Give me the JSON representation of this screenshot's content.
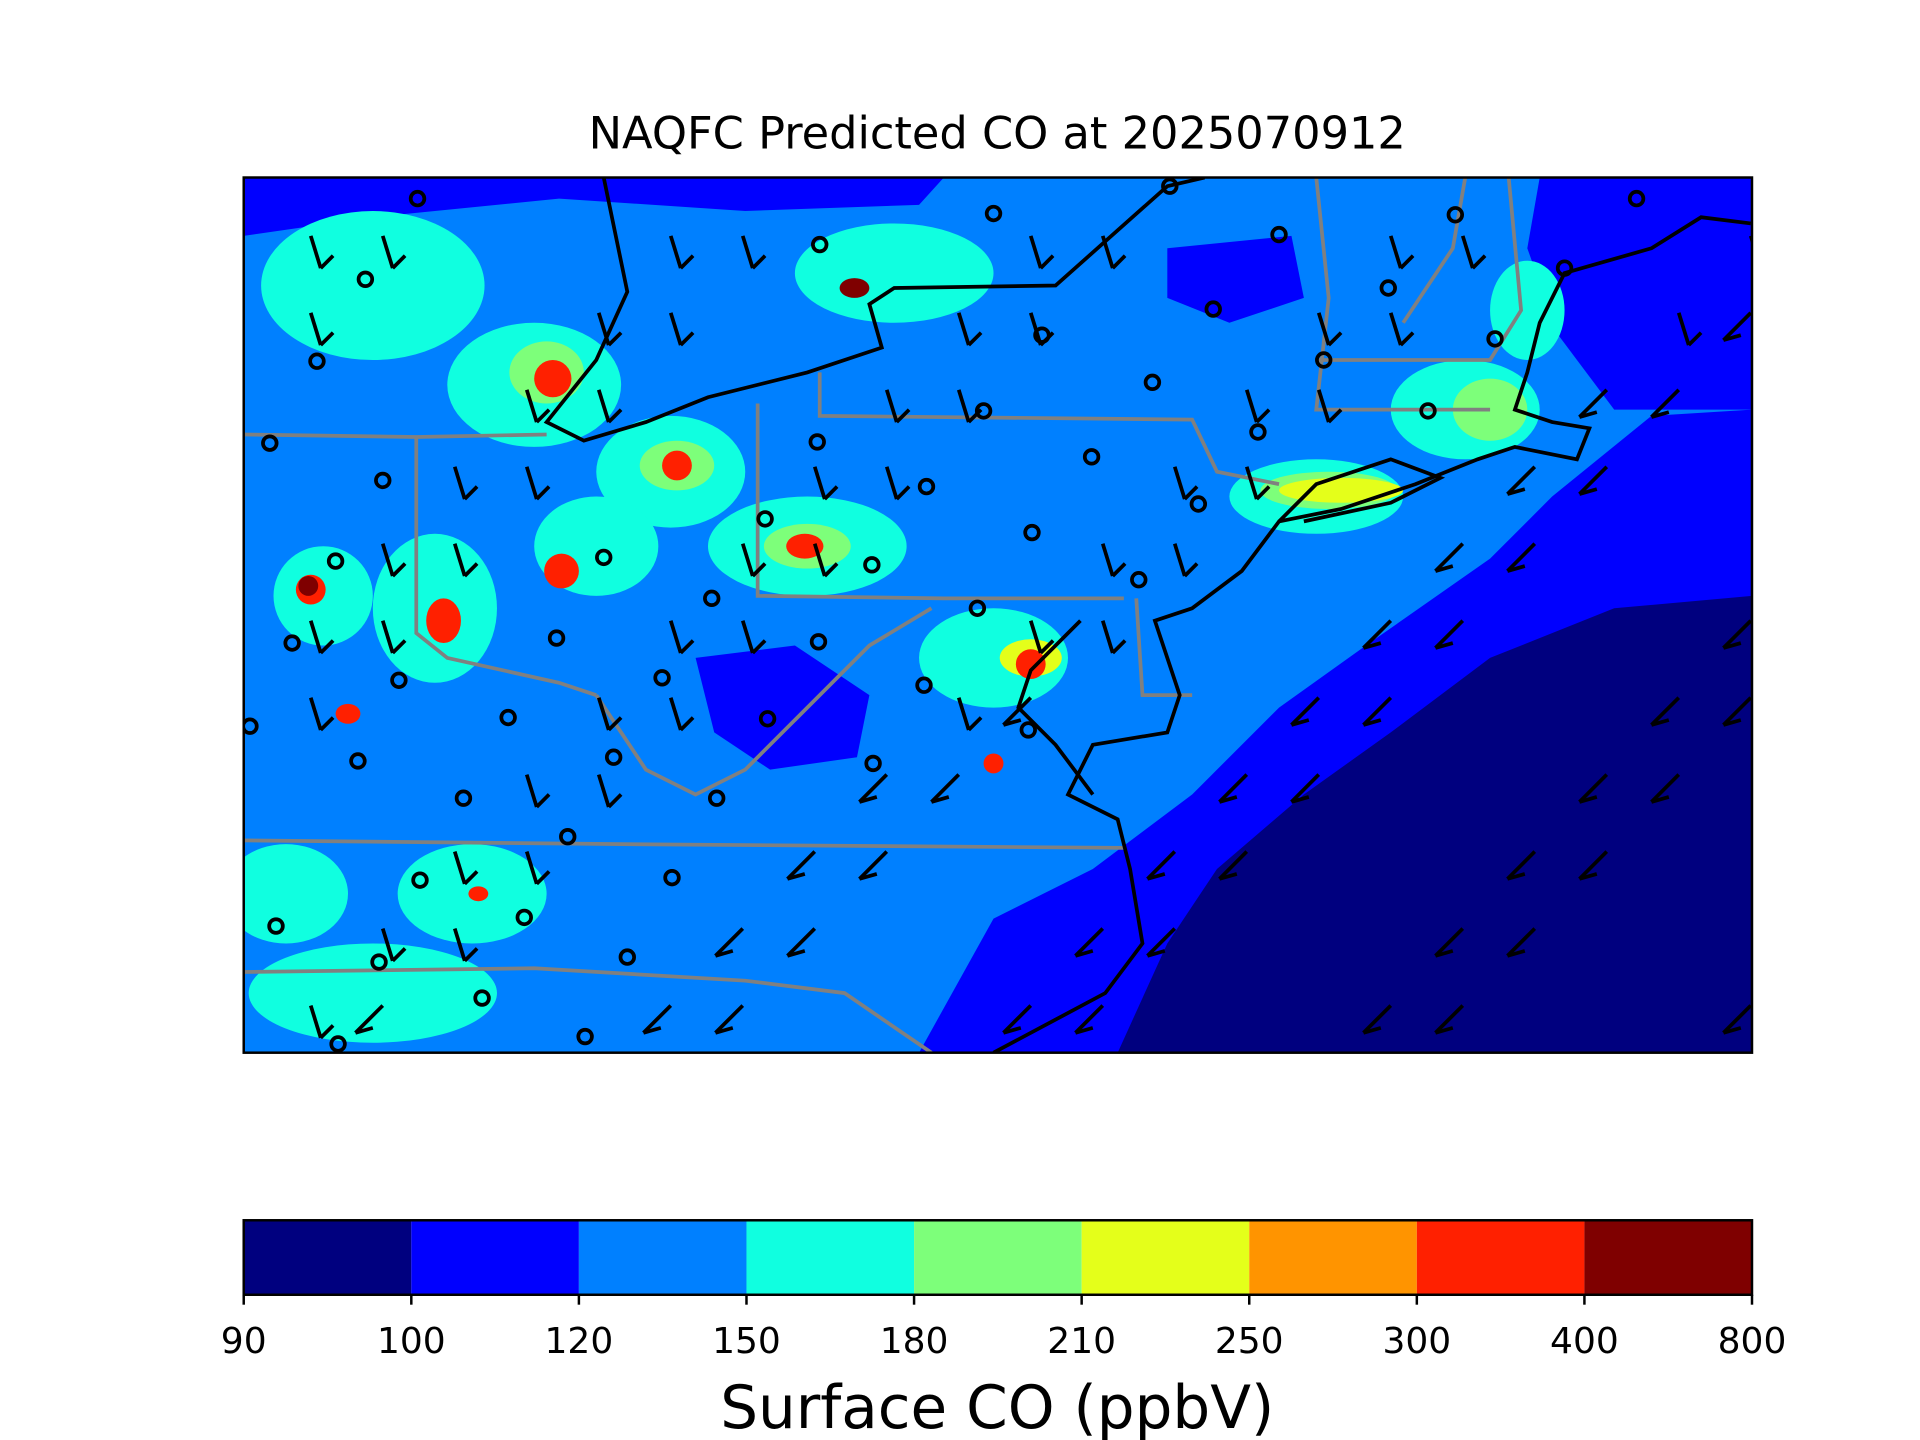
{
  "title": "NAQFC Predicted CO at 2025070912",
  "colorbar": {
    "label": "Surface CO (ppbV)",
    "bounds": [
      90,
      100,
      120,
      150,
      180,
      210,
      250,
      300,
      400,
      800
    ],
    "colors": [
      "#00007f",
      "#0000ff",
      "#0080ff",
      "#10ffe0",
      "#7dff7a",
      "#e4ff1a",
      "#ff9400",
      "#ff2000",
      "#7f0000"
    ]
  }
}
